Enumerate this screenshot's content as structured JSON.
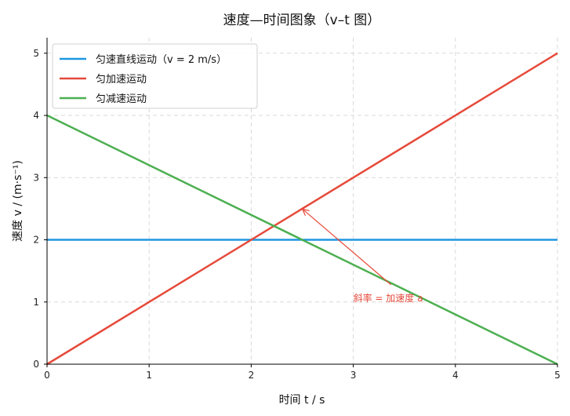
{
  "chart_data": {
    "type": "line",
    "title": "速度—时间图象（v–t 图）",
    "xlabel": "时间 t / s",
    "ylabel": "速度 v / (m·s⁻¹)",
    "xlim": [
      0,
      5
    ],
    "ylim": [
      0,
      5.25
    ],
    "xticks": [
      "0",
      "1",
      "2",
      "3",
      "4",
      "5"
    ],
    "yticks": [
      "0",
      "1",
      "2",
      "3",
      "4",
      "5"
    ],
    "grid": true,
    "legend_position": "top-left",
    "series": [
      {
        "name": "匀速直线运动（v = 2 m/s）",
        "color": "#1f97e0",
        "x": [
          0,
          5
        ],
        "y": [
          2,
          2
        ]
      },
      {
        "name": "匀加速运动",
        "color": "#e64a3b",
        "x": [
          0,
          5
        ],
        "y": [
          0,
          5
        ]
      },
      {
        "name": "匀减速运动",
        "color": "#4caf50",
        "x": [
          0,
          5
        ],
        "y": [
          4,
          0
        ]
      }
    ],
    "annotations": [
      {
        "text": "斜率 = 加速度 a",
        "color": "#e64a3b",
        "arrow_to": [
          2.5,
          2.5
        ],
        "text_at": [
          3.0,
          1.0
        ]
      }
    ]
  }
}
